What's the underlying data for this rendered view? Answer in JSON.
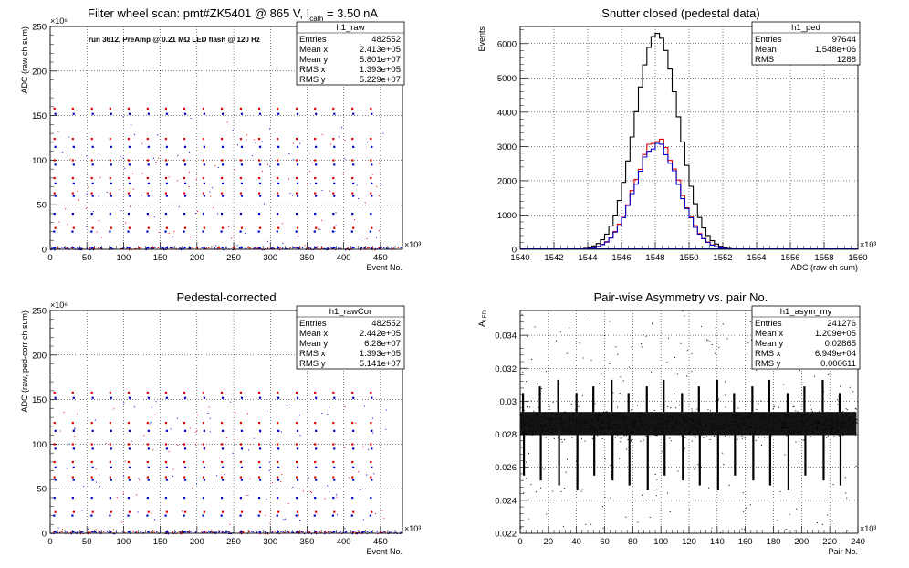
{
  "chart_data": [
    {
      "type": "scatter",
      "title_main": "Filter wheel scan: pmt#ZK5401 @   865 V, I",
      "title_sub": "cath",
      "title_end": " = 3.50 nA",
      "annotation": "run 3612, PreAmp @ 0.21 MΩ LED flash @  120 Hz",
      "xlabel": "Event No.",
      "ylabel": "ADC (raw ch sum)",
      "xexp": "×10³",
      "yexp": "×10⁶",
      "xlim": [
        0,
        480
      ],
      "ylim": [
        0,
        250
      ],
      "xticks": [
        "0",
        "50",
        "100",
        "150",
        "200",
        "250",
        "300",
        "350",
        "400",
        "450"
      ],
      "yticks": [
        "0",
        "50",
        "100",
        "150",
        "200",
        "250"
      ],
      "cycle_starts": [
        4,
        29,
        55,
        80,
        105,
        131,
        156,
        181,
        207,
        232,
        258,
        283,
        308,
        334,
        359,
        384,
        410,
        435
      ],
      "levels": [
        {
          "y": 158,
          "color": "#e00000"
        },
        {
          "y": 152,
          "color": "#0000cc"
        },
        {
          "y": 124,
          "color": "#e00000"
        },
        {
          "y": 115,
          "color": "#0000cc"
        },
        {
          "y": 100,
          "color": "#e00000"
        },
        {
          "y": 95,
          "color": "#0000cc"
        },
        {
          "y": 80,
          "color": "#e00000"
        },
        {
          "y": 74,
          "color": "#0000cc"
        },
        {
          "y": 63,
          "color": "#e00000"
        },
        {
          "y": 60,
          "color": "#0000cc"
        },
        {
          "y": 40,
          "color": "#0000cc"
        },
        {
          "y": 24,
          "color": "#e00000"
        },
        {
          "y": 20,
          "color": "#0000cc"
        },
        {
          "y": 2,
          "color": "#0000cc"
        }
      ],
      "stats": {
        "name": "h1_raw",
        "rows": [
          {
            "label": "Entries",
            "value": "482552"
          },
          {
            "label": "Mean x",
            "value": "2.413e+05"
          },
          {
            "label": "Mean y",
            "value": "5.801e+07"
          },
          {
            "label": "RMS x",
            "value": "1.393e+05"
          },
          {
            "label": "RMS y",
            "value": "5.229e+07"
          }
        ]
      }
    },
    {
      "type": "histogram",
      "title": "Shutter closed (pedestal data)",
      "xlabel": "ADC (raw ch sum)",
      "ylabel": "Events",
      "xexp": "×10³",
      "xlim": [
        1540,
        1560
      ],
      "ylim": [
        0,
        6500
      ],
      "xticks": [
        "1540",
        "1542",
        "1544",
        "1546",
        "1548",
        "1550",
        "1552",
        "1554",
        "1556",
        "1558",
        "1560"
      ],
      "yticks": [
        "0",
        "1000",
        "2000",
        "3000",
        "4000",
        "5000",
        "6000"
      ],
      "series": [
        {
          "color": "#000000",
          "mean": 1548.1,
          "sigma": 1.29,
          "peak": 6300
        },
        {
          "color": "#e00000",
          "mean": 1548.1,
          "sigma": 1.29,
          "peak": 3200
        },
        {
          "color": "#0000cc",
          "mean": 1548.1,
          "sigma": 1.29,
          "peak": 3060
        }
      ],
      "stats": {
        "name": "h1_ped",
        "rows": [
          {
            "label": "Entries",
            "value": "97644"
          },
          {
            "label": "Mean",
            "value": "1.548e+06"
          },
          {
            "label": "RMS",
            "value": "1288"
          }
        ]
      }
    },
    {
      "type": "scatter",
      "title": "Pedestal-corrected",
      "xlabel": "Event No.",
      "ylabel": "ADC (raw, ped-corr ch sum)",
      "xexp": "×10³",
      "yexp": "×10⁶",
      "xlim": [
        0,
        480
      ],
      "ylim": [
        0,
        250
      ],
      "xticks": [
        "0",
        "50",
        "100",
        "150",
        "200",
        "250",
        "300",
        "350",
        "400",
        "450"
      ],
      "yticks": [
        "0",
        "50",
        "100",
        "150",
        "200",
        "250"
      ],
      "stats": {
        "name": "h1_rawCor",
        "rows": [
          {
            "label": "Entries",
            "value": "482552"
          },
          {
            "label": "Mean x",
            "value": "2.442e+05"
          },
          {
            "label": "Mean y",
            "value": "6.28e+07"
          },
          {
            "label": "RMS x",
            "value": "1.393e+05"
          },
          {
            "label": "RMS y",
            "value": "5.141e+07"
          }
        ]
      }
    },
    {
      "type": "scatter",
      "title": "Pair-wise Asymmetry vs. pair No.",
      "xlabel": "Pair No.",
      "ylabel": "A",
      "ylabel_sub": "LED",
      "xexp": "×10³",
      "xlim": [
        0,
        240
      ],
      "ylim": [
        0.022,
        0.0355
      ],
      "xticks": [
        "0",
        "20",
        "40",
        "60",
        "80",
        "100",
        "120",
        "140",
        "160",
        "180",
        "200",
        "220",
        "240"
      ],
      "yticks": [
        "0.022",
        "0.024",
        "0.026",
        "0.028",
        "0.03",
        "0.032",
        "0.034"
      ],
      "band_center": 0.02865,
      "band_halfwidth": 0.0007,
      "spike_pairs": [
        2,
        14,
        27,
        40,
        52,
        65,
        77,
        90,
        102,
        115,
        127,
        140,
        152,
        165,
        177,
        190,
        202,
        215,
        227
      ],
      "stats": {
        "name": "h1_asym_my",
        "rows": [
          {
            "label": "Entries",
            "value": "241276"
          },
          {
            "label": "Mean x",
            "value": "1.209e+05"
          },
          {
            "label": "Mean y",
            "value": "0.02865"
          },
          {
            "label": "RMS x",
            "value": "6.949e+04"
          },
          {
            "label": "RMS y",
            "value": "0.000611"
          }
        ]
      }
    }
  ]
}
